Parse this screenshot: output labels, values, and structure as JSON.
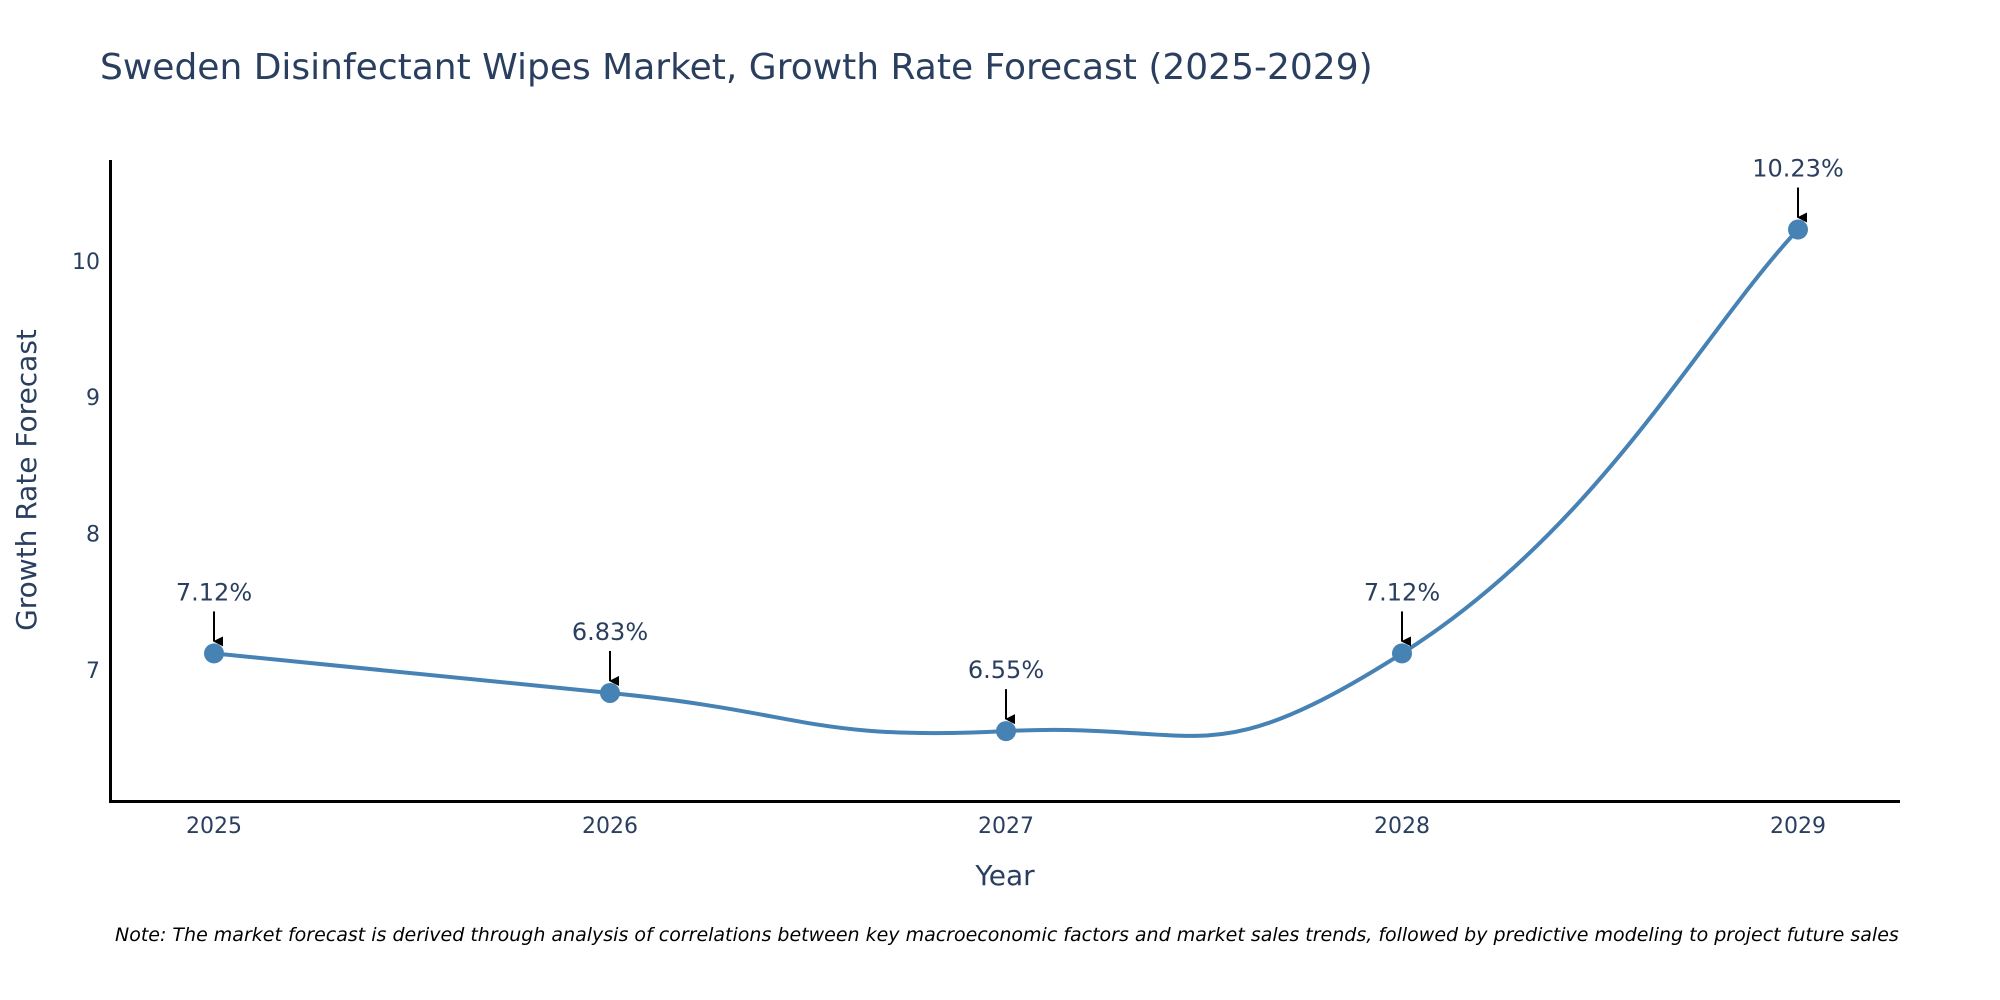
{
  "chart_data": {
    "type": "line",
    "title": "Sweden Disinfectant Wipes Market, Growth Rate Forecast (2025-2029)",
    "xlabel": "Year",
    "ylabel": "Growth Rate Forecast",
    "categories": [
      "2025",
      "2026",
      "2027",
      "2028",
      "2029"
    ],
    "values": [
      7.12,
      6.83,
      6.55,
      7.12,
      10.23
    ],
    "data_labels": [
      "7.12%",
      "6.83%",
      "6.55%",
      "7.12%",
      "10.23%"
    ],
    "yticks": [
      7,
      8,
      9,
      10
    ],
    "ylim": [
      6.03,
      10.74
    ],
    "grid": false,
    "line_shape": "spline",
    "colors": {
      "line": "#4682b4",
      "marker": "#4682b4",
      "axis": "#000000",
      "text": "#2a3f5f",
      "arrow": "#000000"
    },
    "note": "Note: The market forecast is derived through analysis of correlations between key macroeconomic factors and market sales trends, followed by predictive modeling to project future sales"
  }
}
